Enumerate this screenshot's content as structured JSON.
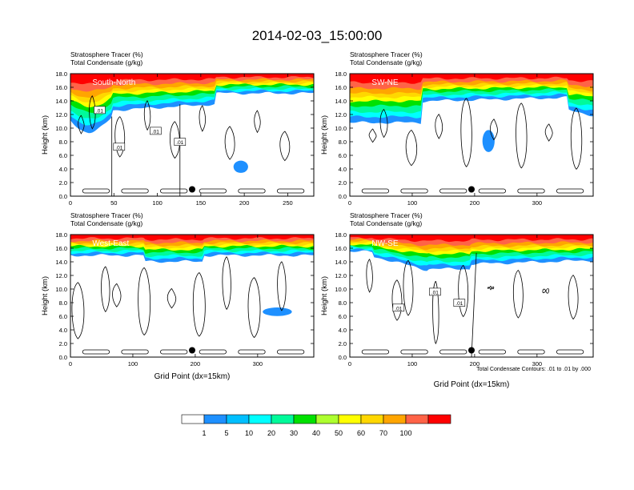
{
  "figure": {
    "title": "2014-02-03_15:00:00",
    "left_string_1": "Stratosphere Tracer   (%)",
    "left_string_2": "Total Condensate   (g/kg)",
    "ylabel": "Height (km)",
    "xlabel": "Grid Point (dx=15km)",
    "contour_info": "Total Condensate Contours: .01 to .01 by .000"
  },
  "colorbar": {
    "colors": [
      "#ffffff",
      "#1e90ff",
      "#00bfff",
      "#00ffff",
      "#00fa9a",
      "#00e100",
      "#adff2f",
      "#ffff00",
      "#ffd700",
      "#ffa500",
      "#ff6347",
      "#ff0000"
    ],
    "labels": [
      "1",
      "5",
      "10",
      "20",
      "30",
      "40",
      "50",
      "60",
      "70",
      "100"
    ]
  },
  "chart_data": [
    {
      "type": "heatmap",
      "panel_label": "South-North",
      "x_ticks": [
        0,
        50,
        100,
        150,
        200,
        250
      ],
      "xlim": [
        0,
        280
      ],
      "y_ticks": [
        "0.0",
        "2.0",
        "4.0",
        "6.0",
        "8.0",
        "10.0",
        "12.0",
        "14.0",
        "16.0",
        "18.0"
      ],
      "ylim": [
        0,
        18
      ],
      "marker_x": 140,
      "marker_y": 1.0,
      "contour_labels": [
        ".01",
        ".01",
        ".01",
        ".01"
      ]
    },
    {
      "type": "heatmap",
      "panel_label": "SW-NE",
      "x_ticks": [
        0,
        100,
        200,
        300
      ],
      "xlim": [
        0,
        390
      ],
      "y_ticks": [
        "0.0",
        "2.0",
        "4.0",
        "6.0",
        "8.0",
        "10.0",
        "12.0",
        "14.0",
        "16.0",
        "18.0"
      ],
      "ylim": [
        0,
        18
      ],
      "marker_x": 195,
      "marker_y": 1.0,
      "contour_labels": []
    },
    {
      "type": "heatmap",
      "panel_label": "West-East",
      "x_ticks": [
        0,
        100,
        200,
        300
      ],
      "xlim": [
        0,
        390
      ],
      "y_ticks": [
        "0.0",
        "2.0",
        "4.0",
        "6.0",
        "8.0",
        "10.0",
        "12.0",
        "14.0",
        "16.0",
        "18.0"
      ],
      "ylim": [
        0,
        18
      ],
      "marker_x": 195,
      "marker_y": 1.0,
      "contour_labels": []
    },
    {
      "type": "heatmap",
      "panel_label": "NW-SE",
      "x_ticks": [
        0,
        100,
        200,
        300
      ],
      "xlim": [
        0,
        390
      ],
      "y_ticks": [
        "0.0",
        "2.0",
        "4.0",
        "6.0",
        "8.0",
        "10.0",
        "12.0",
        "14.0",
        "16.0",
        "18.0"
      ],
      "ylim": [
        0,
        18
      ],
      "marker_x": 195,
      "marker_y": 1.0,
      "contour_labels": [
        ".01",
        ".01",
        ".01"
      ]
    }
  ]
}
